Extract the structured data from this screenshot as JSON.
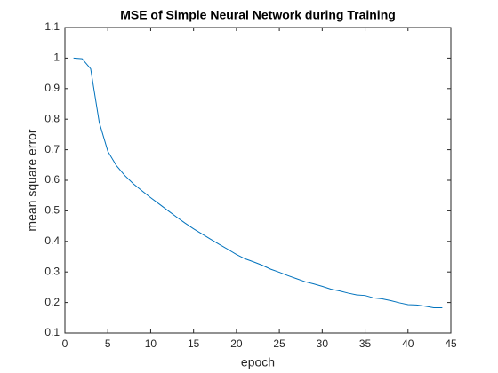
{
  "chart_data": {
    "type": "line",
    "title": "MSE of Simple Neural Network during Training",
    "x_label": "epoch",
    "y_label": "mean square error",
    "x": [
      1,
      2,
      3,
      4,
      5,
      6,
      7,
      8,
      9,
      10,
      11,
      12,
      13,
      14,
      15,
      16,
      17,
      18,
      19,
      20,
      21,
      22,
      23,
      24,
      25,
      26,
      27,
      28,
      29,
      30,
      31,
      32,
      33,
      34,
      35,
      36,
      37,
      38,
      39,
      40,
      41,
      42,
      43,
      44
    ],
    "series": [
      {
        "name": "MSE",
        "color": "#0072bd",
        "values": [
          1.0,
          0.998,
          0.965,
          0.79,
          0.695,
          0.648,
          0.615,
          0.588,
          0.565,
          0.543,
          0.522,
          0.501,
          0.48,
          0.46,
          0.441,
          0.424,
          0.407,
          0.39,
          0.374,
          0.357,
          0.343,
          0.333,
          0.322,
          0.309,
          0.299,
          0.288,
          0.278,
          0.268,
          0.261,
          0.253,
          0.244,
          0.238,
          0.231,
          0.225,
          0.223,
          0.215,
          0.212,
          0.206,
          0.199,
          0.193,
          0.192,
          0.188,
          0.183,
          0.183
        ]
      }
    ],
    "xlim": [
      0,
      45
    ],
    "xticks": [
      0,
      5,
      10,
      15,
      20,
      25,
      30,
      35,
      40,
      45
    ],
    "ylim": [
      0.1,
      1.1
    ],
    "yticks": [
      0.1,
      0.2,
      0.3,
      0.4,
      0.5,
      0.6,
      0.7,
      0.8,
      0.9,
      1,
      1.1
    ],
    "grid": false
  }
}
